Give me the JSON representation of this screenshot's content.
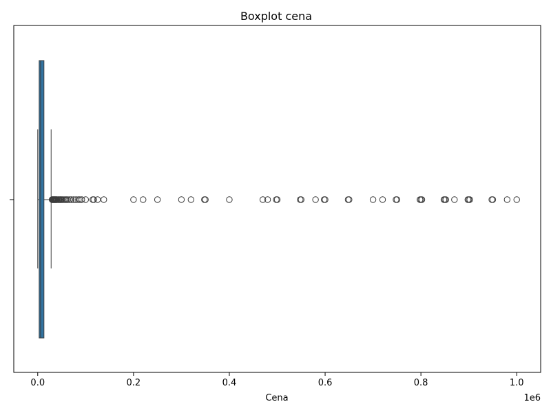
{
  "chart_data": {
    "type": "boxplot",
    "orientation": "horizontal",
    "title": "Boxplot cena",
    "xlabel": "Cena",
    "ylabel": "",
    "x_scale_label": "1e6",
    "xlim": [
      -50000,
      1050000
    ],
    "x_ticks": [
      0,
      200000,
      400000,
      600000,
      800000,
      1000000
    ],
    "x_tick_labels": [
      "0.0",
      "0.2",
      "0.4",
      "0.6",
      "0.8",
      "1.0"
    ],
    "grid": false,
    "legend": "none",
    "box": {
      "q1": 3000,
      "median": 6000,
      "q3": 13000,
      "whisker_low": 0,
      "whisker_high": 28000,
      "fill_color": "#3274a1",
      "edge_color": "#3c3c3c"
    },
    "outliers": [
      30000,
      31000,
      32000,
      33000,
      34000,
      35000,
      36000,
      37000,
      38000,
      39000,
      40000,
      42000,
      44000,
      45000,
      47000,
      48000,
      50000,
      52000,
      55000,
      58000,
      60000,
      63000,
      67000,
      70000,
      75000,
      80000,
      85000,
      88000,
      92000,
      100000,
      115000,
      117000,
      125000,
      138000,
      200000,
      220000,
      250000,
      300000,
      320000,
      348000,
      350000,
      400000,
      470000,
      480000,
      498000,
      500000,
      548000,
      550000,
      580000,
      598000,
      600000,
      648000,
      650000,
      700000,
      720000,
      748000,
      750000,
      798000,
      800000,
      802000,
      848000,
      850000,
      852000,
      870000,
      898000,
      900000,
      902000,
      948000,
      950000,
      980000,
      1000000
    ]
  }
}
